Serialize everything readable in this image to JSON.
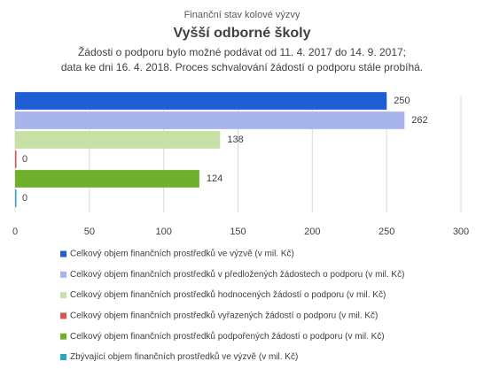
{
  "chart_data": {
    "type": "hbar",
    "title": "Finanční stav kolové výzvy",
    "subtitle": "Vyšší odborné školy",
    "notes": [
      "Žádosti o podporu bylo možné  podávat od 11. 4. 2017 do 14. 9. 2017;",
      "data ke dni 16. 4. 2018. Proces schvalování žádostí o podporu stále probíhá."
    ],
    "series": [
      {
        "name": "Celkový objem finančních prostředků ve výzvě (v mil. Kč)",
        "color": "#1f5fd6",
        "values": [
          250
        ]
      },
      {
        "name": "Celkový objem finančních prostředků v předložených žádostech o podporu (v mil. Kč)",
        "color": "#a7b5ea",
        "values": [
          262
        ]
      },
      {
        "name": "Celkový objem finančních prostředků hodnocených žádostí o podporu (v mil. Kč)",
        "color": "#c6e0a6",
        "values": [
          138
        ]
      },
      {
        "name": "Celkový objem finančních prostředků vyřazených žádostí o podporu (v mil. Kč)",
        "color": "#d9534f",
        "values": [
          0
        ]
      },
      {
        "name": "Celkový objem finančních prostředků podpořených žádostí o podporu (v mil. Kč)",
        "color": "#6fb02c",
        "values": [
          124
        ]
      },
      {
        "name": "Zbývající objem finančních prostředků ve výzvě (v mil. Kč)",
        "color": "#2aa6c6",
        "values": [
          0
        ]
      }
    ],
    "xlim": [
      0,
      300
    ],
    "xticks": [
      0,
      50,
      100,
      150,
      200,
      250,
      300
    ],
    "grid": true,
    "legend": "bottom"
  }
}
